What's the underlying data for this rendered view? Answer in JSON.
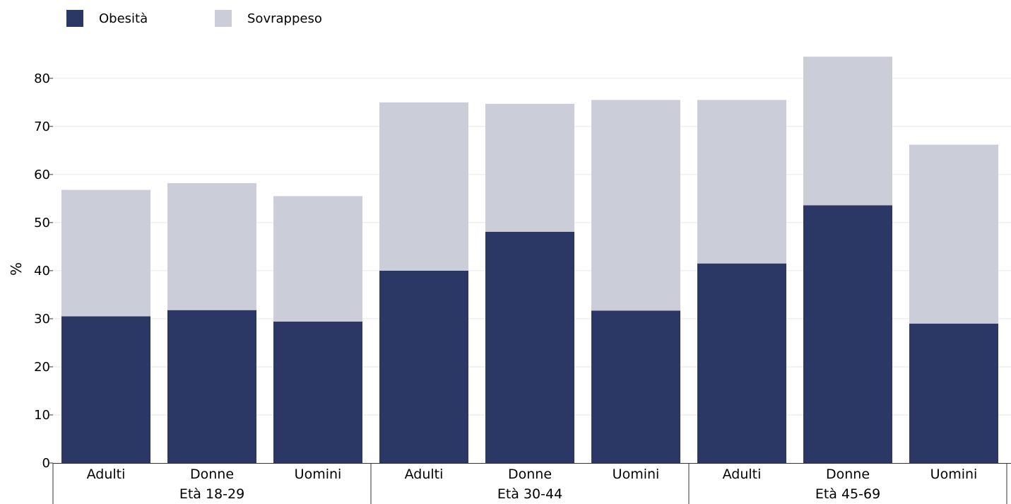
{
  "chart_data": {
    "type": "bar",
    "stacked": true,
    "ylabel": "%",
    "ylim": [
      0,
      86
    ],
    "yticks": [
      0,
      10,
      20,
      30,
      40,
      50,
      60,
      70,
      80
    ],
    "grid": true,
    "legend_position": "top-left",
    "groups": [
      {
        "label": "Età 18-29",
        "categories": [
          "Adulti",
          "Donne",
          "Uomini"
        ]
      },
      {
        "label": "Età 30-44",
        "categories": [
          "Adulti",
          "Donne",
          "Uomini"
        ]
      },
      {
        "label": "Età 45-69",
        "categories": [
          "Adulti",
          "Donne",
          "Uomini"
        ]
      }
    ],
    "series": [
      {
        "name": "Obesità",
        "color": "#2b3764",
        "values": [
          30.5,
          31.8,
          29.4,
          40.0,
          48.1,
          31.7,
          41.5,
          53.6,
          29.0
        ]
      },
      {
        "name": "Sovrappeso",
        "color": "#cbcdd9",
        "values": [
          26.3,
          26.4,
          26.1,
          35.0,
          26.6,
          43.8,
          34.0,
          30.9,
          37.2
        ]
      }
    ]
  }
}
